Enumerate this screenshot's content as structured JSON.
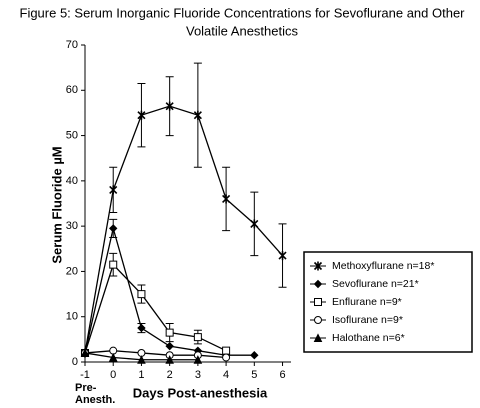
{
  "chart_data": {
    "type": "line",
    "title": [
      "Figure 5: Serum Inorganic Fluoride Concentrations for Sevoflurane and Other",
      "Volatile Anesthetics"
    ],
    "x_label": "Days Post-anesthesia",
    "y_label": "Serum Fluoride µM",
    "annotation": [
      "Pre-",
      "Anesth."
    ],
    "x": [
      -1,
      0,
      1,
      2,
      3,
      4,
      5,
      6
    ],
    "xlim": [
      -1,
      6.3
    ],
    "xticks": [
      -1,
      0,
      1,
      2,
      3,
      4,
      5,
      6
    ],
    "ylim": [
      0,
      70
    ],
    "yticks": [
      0,
      10,
      20,
      30,
      40,
      50,
      60,
      70
    ],
    "legend": "lower right",
    "series": [
      {
        "name": "Methoxyflurane n=18*",
        "color": "#000000",
        "marker": "star",
        "values": [
          2,
          38,
          54.5,
          56.5,
          54.5,
          36,
          30.5,
          23.5
        ],
        "errors": [
          null,
          5,
          7,
          6.5,
          11.5,
          7,
          7,
          7
        ]
      },
      {
        "name": "Sevoflurane n=21*",
        "color": "#000000",
        "marker": "diamond",
        "values": [
          2,
          29.5,
          7.5,
          3.5,
          2.5,
          1.5,
          1.5,
          null
        ],
        "errors": [
          null,
          2,
          1,
          null,
          null,
          null,
          null,
          null
        ]
      },
      {
        "name": "Enflurane n=9*",
        "color": "#000000",
        "marker": "square",
        "values": [
          2,
          21.5,
          15,
          6.5,
          5.5,
          2.5,
          null,
          null
        ],
        "errors": [
          null,
          2.5,
          2,
          2,
          1.5,
          null,
          null,
          null
        ]
      },
      {
        "name": "Isoflurane n=9*",
        "color": "#000000",
        "marker": "circle",
        "values": [
          2,
          2.5,
          2,
          1.5,
          1.5,
          1,
          null,
          null
        ],
        "errors": [
          null,
          null,
          null,
          null,
          null,
          null,
          null,
          null
        ]
      },
      {
        "name": "Halothane n=6*",
        "color": "#000000",
        "marker": "triangle",
        "values": [
          2,
          1,
          0.5,
          0.5,
          0.5,
          null,
          null,
          null
        ],
        "errors": [
          null,
          null,
          null,
          null,
          null,
          null,
          null,
          null
        ]
      }
    ]
  }
}
